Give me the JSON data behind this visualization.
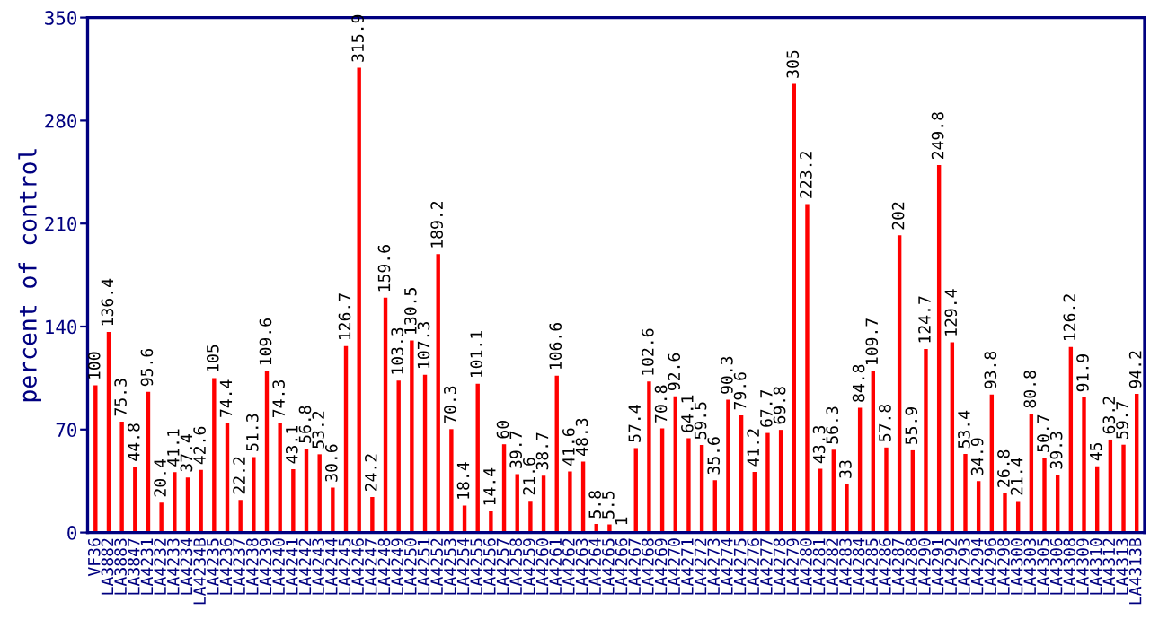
{
  "chart_data": {
    "type": "bar",
    "ylabel": "percent of control",
    "categories": [
      "VF36",
      "LA3882",
      "LA3883",
      "LA3847",
      "LA4231",
      "LA4232",
      "LA4233",
      "LA4234",
      "LA4234B",
      "LA4235",
      "LA4236",
      "LA4237",
      "LA4238",
      "LA4239",
      "LA4240",
      "LA4241",
      "LA4242",
      "LA4243",
      "LA4244",
      "LA4245",
      "LA4246",
      "LA4247",
      "LA4248",
      "LA4249",
      "LA4250",
      "LA4251",
      "LA4252",
      "LA4253",
      "LA4254",
      "LA4255",
      "LA4256",
      "LA4257",
      "LA4258",
      "LA4259",
      "LA4260",
      "LA4261",
      "LA4262",
      "LA4263",
      "LA4264",
      "LA4265",
      "LA4266",
      "LA4267",
      "LA4268",
      "LA4269",
      "LA4270",
      "LA4271",
      "LA4272",
      "LA4273",
      "LA4274",
      "LA4275",
      "LA4276",
      "LA4277",
      "LA4278",
      "LA4279",
      "LA4280",
      "LA4281",
      "LA4282",
      "LA4283",
      "LA4284",
      "LA4285",
      "LA4286",
      "LA4287",
      "LA4288",
      "LA4290",
      "LA4291",
      "LA4292",
      "LA4293",
      "LA4294",
      "LA4296",
      "LA4298",
      "LA4300",
      "LA4303",
      "LA4305",
      "LA4306",
      "LA4308",
      "LA4309",
      "LA4310",
      "LA4312",
      "LA4313",
      "LA4313B"
    ],
    "values": [
      100,
      136.4,
      75.3,
      44.8,
      95.6,
      20.4,
      41.1,
      37.4,
      42.6,
      105,
      74.4,
      22.2,
      51.3,
      109.6,
      74.3,
      43.1,
      56.8,
      53.2,
      30.6,
      126.7,
      315.9,
      24.2,
      159.6,
      103.3,
      130.5,
      107.3,
      189.2,
      70.3,
      18.4,
      101.1,
      14.4,
      60,
      39.7,
      21.6,
      38.7,
      106.6,
      41.6,
      48.3,
      5.8,
      5.5,
      1,
      57.4,
      102.6,
      70.8,
      92.6,
      64.1,
      59.5,
      35.6,
      90.3,
      79.6,
      41.2,
      67.7,
      69.8,
      305,
      223.2,
      43.3,
      56.3,
      33,
      84.8,
      109.7,
      57.8,
      202,
      55.9,
      124.7,
      249.8,
      129.4,
      53.4,
      34.9,
      93.8,
      26.8,
      21.4,
      80.8,
      50.7,
      39.3,
      126.2,
      91.9,
      45,
      63.2,
      59.7,
      94.2
    ],
    "color": "#ff0000",
    "data_labels": true,
    "ylim": [
      0,
      350
    ],
    "yticks": [
      0,
      70,
      140,
      210,
      280,
      350
    ],
    "grid": false,
    "legend": false
  }
}
